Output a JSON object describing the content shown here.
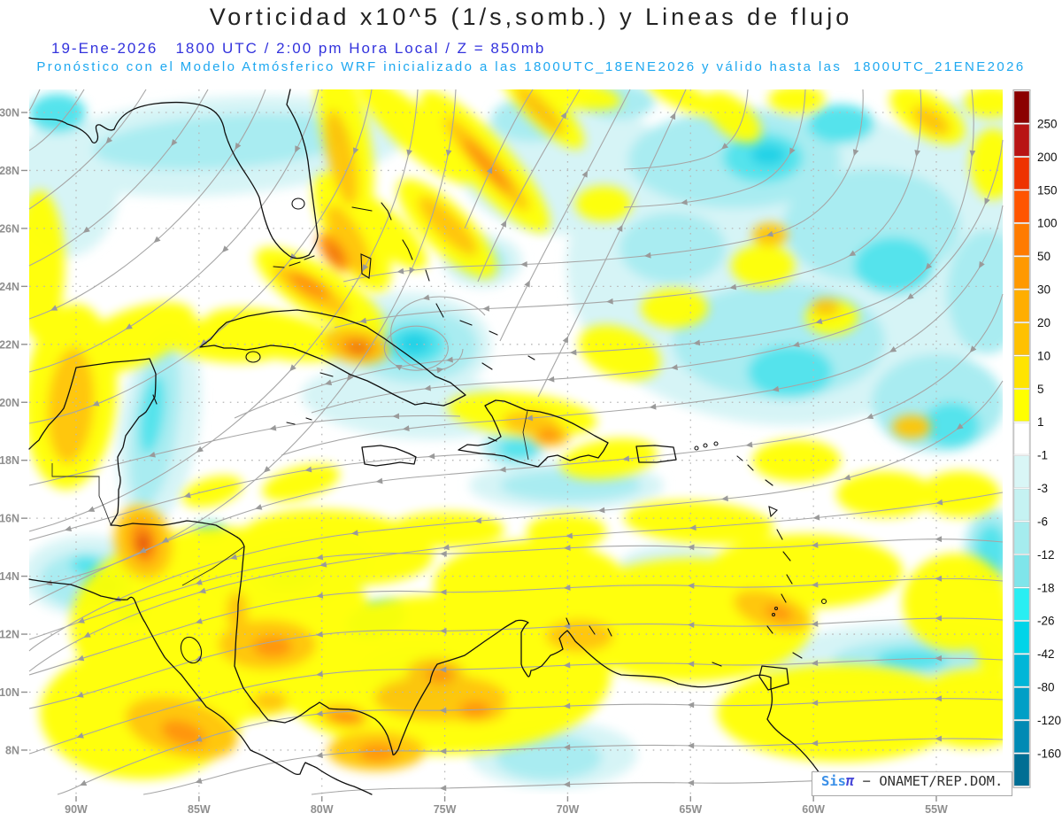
{
  "header": {
    "title": "Vorticidad x10^5 (1/s,somb.) y Lineas de flujo",
    "subtitle": "19-Ene-2026   1800 UTC / 2:00 pm Hora Local / Z = 850mb",
    "note": "Pronóstico con el Modelo Atmósferico WRF inicializado a las 1800UTC_18ENE2026 y válido hasta las  1800UTC_21ENE2026"
  },
  "watermark": {
    "brand_prefix": "Sis",
    "brand_symbol": "π",
    "rest": " − ONAMET/REP.DOM."
  },
  "axes": {
    "lat_labels": [
      "30N",
      "28N",
      "26N",
      "24N",
      "22N",
      "20N",
      "18N",
      "16N",
      "14N",
      "12N",
      "10N",
      "8N"
    ],
    "lon_labels": [
      "90W",
      "85W",
      "80W",
      "75W",
      "70W",
      "65W",
      "60W",
      "55W"
    ]
  },
  "colorbar": {
    "tick_labels": [
      "250",
      "200",
      "150",
      "100",
      "50",
      "30",
      "20",
      "10",
      "5",
      "1",
      "-1",
      "-3",
      "-6",
      "-12",
      "-18",
      "-26",
      "-42",
      "-80",
      "-120",
      "-160"
    ],
    "colors": [
      "#8b0000",
      "#b81414",
      "#ee3300",
      "#ff5500",
      "#ff7b00",
      "#ff9900",
      "#ffae00",
      "#ffc100",
      "#ffe400",
      "#ffff00",
      "#ffffff",
      "#d9f6f6",
      "#c5f2f2",
      "#a5ecee",
      "#7fe5ea",
      "#29eef2",
      "#00d4e8",
      "#00b6d8",
      "#009fc6",
      "#008ab4",
      "#006e94"
    ]
  },
  "chart_data": {
    "type": "heatmap",
    "title": "Vorticidad x10^5 (1/s,somb.) y Lineas de flujo",
    "subtitle": "19-Ene-2026 1800 UTC / 2:00 pm Hora Local / Z = 850mb",
    "forecast_note": "Pronóstico con el Modelo Atmósferico WRF inicializado a las 1800UTC_18ENE2026 y válido hasta las 1800UTC_21ENE2026",
    "variable": "Vorticidad x10^5 (1/s)",
    "shading": "somb.",
    "overlay": "Lineas de flujo",
    "pressure_level": "850mb",
    "model": "WRF",
    "init_time": "1800UTC_18ENE2026",
    "valid_until": "1800UTC_21ENE2026",
    "x_ticks": [
      "90W",
      "85W",
      "80W",
      "75W",
      "70W",
      "65W",
      "60W",
      "55W"
    ],
    "y_ticks": [
      "30N",
      "28N",
      "26N",
      "24N",
      "22N",
      "20N",
      "18N",
      "16N",
      "14N",
      "12N",
      "10N",
      "8N"
    ],
    "grid": "dotted",
    "legend_position": "right",
    "colorbar_levels": [
      250,
      200,
      150,
      100,
      50,
      30,
      20,
      10,
      5,
      1,
      -1,
      -3,
      -6,
      -12,
      -18,
      -26,
      -42,
      -80,
      -120,
      -160
    ],
    "colorbar_colors": [
      "#8b0000",
      "#b81414",
      "#ee3300",
      "#ff5500",
      "#ff7b00",
      "#ff9900",
      "#ffae00",
      "#ffc100",
      "#ffe400",
      "#ffff00",
      "#ffffff",
      "#d9f6f6",
      "#c5f2f2",
      "#a5ecee",
      "#7fe5ea",
      "#29eef2",
      "#00d4e8",
      "#00b6d8",
      "#009fc6",
      "#008ab4",
      "#006e94"
    ],
    "streamline_color": "#a6a6a6",
    "credit": "Sisπ − ONAMET/REP.DOM."
  }
}
